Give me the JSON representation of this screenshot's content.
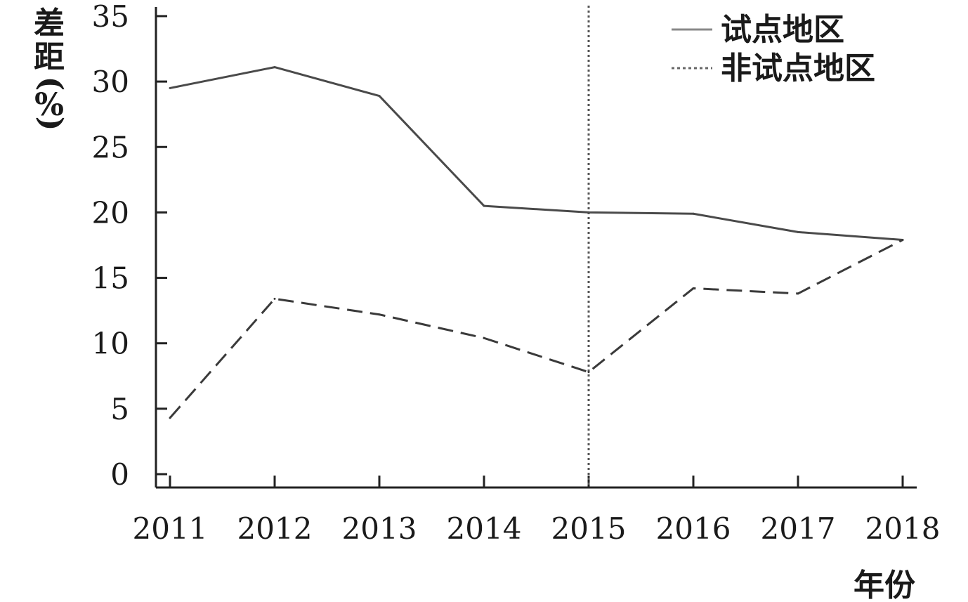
{
  "chart_data": {
    "type": "line",
    "xlabel": "年份",
    "ylabel_chars": [
      "差",
      "距",
      "(",
      "%",
      ")"
    ],
    "x": [
      "2011",
      "2012",
      "2013",
      "2014",
      "2015",
      "2016",
      "2017",
      "2018"
    ],
    "yticks": [
      0,
      5,
      10,
      15,
      20,
      25,
      30,
      35
    ],
    "ylim": [
      0,
      35
    ],
    "grid": false,
    "legend_position": "top-right",
    "reference_line": {
      "x": "2015",
      "style": "dotted"
    },
    "series": [
      {
        "name": "试点地区",
        "style": "solid",
        "color": "#4a4a4a",
        "values": [
          29.5,
          31.1,
          28.9,
          20.5,
          20.0,
          19.9,
          18.5,
          17.9
        ]
      },
      {
        "name": "非试点地区",
        "style": "dashed",
        "color": "#3a3a3a",
        "values": [
          4.3,
          13.4,
          12.2,
          10.4,
          7.8,
          14.2,
          13.8,
          17.9
        ]
      }
    ]
  }
}
